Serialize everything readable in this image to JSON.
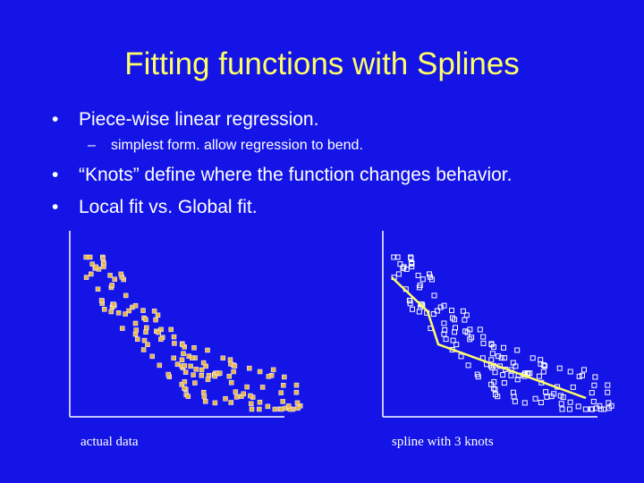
{
  "slide": {
    "title": "Fitting functions with Splines",
    "bullets": [
      {
        "marker": "•",
        "text": "Piece-wise linear regression."
      },
      {
        "marker": "–",
        "text": "simplest form.  allow regression to bend."
      },
      {
        "marker": "•",
        "text": "“Knots” define where the function changes behavior."
      },
      {
        "marker": "•",
        "text": "Local fit vs. Global fit."
      }
    ]
  },
  "figures": {
    "left_caption": "actual data",
    "right_caption": "spline with 3 knots"
  },
  "colors": {
    "background": "#1414e6",
    "title": "#ffff66",
    "text": "#ffffff",
    "left_points": "#e6b450",
    "spline_line": "#ffff66"
  }
}
